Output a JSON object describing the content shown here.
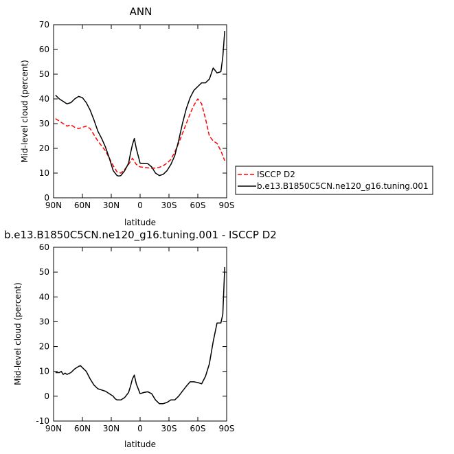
{
  "chart_data": [
    {
      "type": "line",
      "title": "ANN",
      "xlabel": "latitude",
      "ylabel": "Mid-level cloud (percent)",
      "xlim": [
        90,
        -90
      ],
      "ylim": [
        0,
        70
      ],
      "x_tick_values": [
        90,
        60,
        30,
        0,
        -30,
        -60,
        -90
      ],
      "x_tick_labels": [
        "90N",
        "60N",
        "30N",
        "0",
        "30S",
        "60S",
        "90S"
      ],
      "y_ticks": [
        0,
        10,
        20,
        30,
        40,
        50,
        60,
        70
      ],
      "legend": "right",
      "series": [
        {
          "name": "ISCCP D2",
          "color": "#ff0000",
          "dash": "dashed",
          "x": [
            88,
            84,
            80,
            76,
            72,
            68,
            64,
            60,
            56,
            52,
            48,
            44,
            40,
            36,
            32,
            28,
            24,
            20,
            16,
            12,
            8,
            4,
            0,
            -4,
            -8,
            -12,
            -16,
            -20,
            -24,
            -28,
            -32,
            -36,
            -40,
            -44,
            -48,
            -52,
            -56,
            -60,
            -64,
            -68,
            -72,
            -76,
            -80,
            -84,
            -88
          ],
          "values": [
            32,
            31,
            30,
            29,
            29.5,
            28.5,
            28,
            28.5,
            29,
            28,
            25.5,
            23,
            21,
            19,
            16,
            13,
            10.5,
            10,
            11.5,
            13.5,
            16,
            13.5,
            12.5,
            12.3,
            12.1,
            12,
            12,
            12.3,
            13,
            14,
            15.5,
            18.5,
            22,
            26,
            30,
            34,
            37.5,
            40,
            38,
            32,
            25,
            23,
            22,
            19,
            15
          ]
        },
        {
          "name": "b.e13.B1850C5CN.ne120_g16.tuning.001",
          "color": "#000000",
          "dash": "solid",
          "x": [
            88,
            84,
            80,
            76,
            72,
            68,
            64,
            60,
            56,
            52,
            48,
            44,
            40,
            36,
            32,
            28,
            24,
            22,
            20,
            16,
            12,
            10,
            8,
            6,
            4,
            0,
            -4,
            -8,
            -12,
            -16,
            -20,
            -24,
            -28,
            -32,
            -36,
            -40,
            -44,
            -48,
            -52,
            -56,
            -60,
            -64,
            -68,
            -72,
            -76,
            -80,
            -84,
            -86,
            -88
          ],
          "values": [
            41.5,
            40,
            39,
            38,
            38.5,
            40,
            41,
            40.5,
            38.5,
            35.5,
            31.5,
            27,
            24,
            20.5,
            16,
            11,
            9,
            8.8,
            9,
            11,
            14,
            18,
            21.5,
            24,
            20,
            14,
            13.8,
            13.8,
            12.5,
            10,
            9,
            9.5,
            11,
            13.5,
            17,
            23,
            30,
            36,
            40.5,
            43.5,
            45,
            46.5,
            46.5,
            48,
            52.5,
            50.5,
            51,
            57,
            67.5
          ]
        }
      ]
    },
    {
      "type": "line",
      "title": "b.e13.B1850C5CN.ne120_g16.tuning.001 - ISCCP D2",
      "xlabel": "latitude",
      "ylabel": "Mid-level cloud (percent)",
      "xlim": [
        90,
        -90
      ],
      "ylim": [
        -10,
        60
      ],
      "x_tick_values": [
        90,
        60,
        30,
        0,
        -30,
        -60,
        -90
      ],
      "x_tick_labels": [
        "90N",
        "60N",
        "30N",
        "0",
        "30S",
        "60S",
        "90S"
      ],
      "y_ticks": [
        -10,
        0,
        10,
        20,
        30,
        40,
        50,
        60
      ],
      "series": [
        {
          "color": "#000000",
          "dash": "solid",
          "x": [
            88,
            84,
            82,
            80,
            78,
            76,
            72,
            68,
            64,
            62,
            60,
            56,
            52,
            48,
            44,
            40,
            36,
            32,
            28,
            26,
            24,
            20,
            16,
            12,
            10,
            8,
            6,
            4,
            0,
            -4,
            -8,
            -12,
            -16,
            -20,
            -24,
            -28,
            -32,
            -36,
            -40,
            -44,
            -48,
            -52,
            -56,
            -60,
            -64,
            -68,
            -72,
            -76,
            -80,
            -84,
            -86,
            -88
          ],
          "values": [
            9.5,
            9.5,
            10,
            8.8,
            9.3,
            8.8,
            9.5,
            11,
            12,
            12.3,
            11.5,
            10,
            7,
            4.5,
            3,
            2.5,
            2,
            1,
            0,
            -1,
            -1.5,
            -1.5,
            -0.5,
            1.5,
            4,
            7,
            8.5,
            5,
            1,
            1.5,
            1.8,
            1,
            -1.5,
            -3,
            -3,
            -2.5,
            -1.5,
            -1.5,
            0,
            2,
            4,
            5.8,
            5.8,
            5.5,
            5,
            8,
            13,
            22,
            29.5,
            29.5,
            33,
            52
          ]
        }
      ]
    }
  ]
}
